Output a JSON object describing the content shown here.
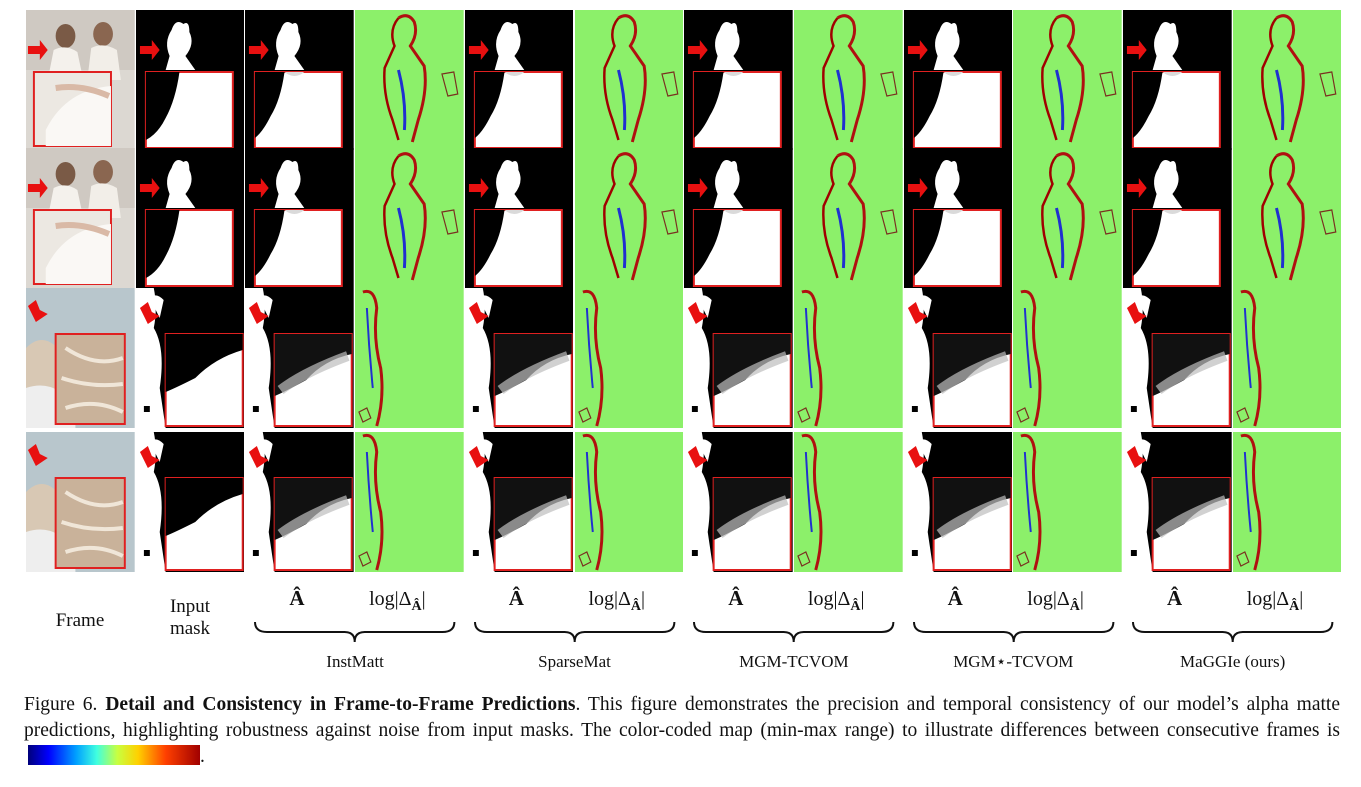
{
  "labels": {
    "frame": "Frame",
    "input_mask_line1": "Input",
    "input_mask_line2": "mask",
    "alpha": "Â",
    "log_delta": "log|Δ",
    "log_sub": "Â",
    "log_close": "|"
  },
  "methods": [
    "InstMatt",
    "SparseMat",
    "MGM-TCVOM",
    "MGM⋆-TCVOM",
    "MaGGIe (ours)"
  ],
  "caption": {
    "prefix": "Figure 6. ",
    "bold": "Detail and Consistency in Frame-to-Frame Predictions",
    "text": ". This figure demonstrates the precision and temporal consistency of our model’s alpha matte predictions, highlighting robustness against noise from input masks. The color-coded map (min-max range) to illustrate differences between consecutive frames is",
    "end": "."
  },
  "colors": {
    "diff_bg": "#8cf06a",
    "inset_border": "#e02020",
    "arrow": "#e81010",
    "colormap": [
      "#00007a",
      "#0000ff",
      "#00a0ff",
      "#40ffe0",
      "#c8ff40",
      "#ffd000",
      "#ff4000",
      "#a00000"
    ]
  }
}
